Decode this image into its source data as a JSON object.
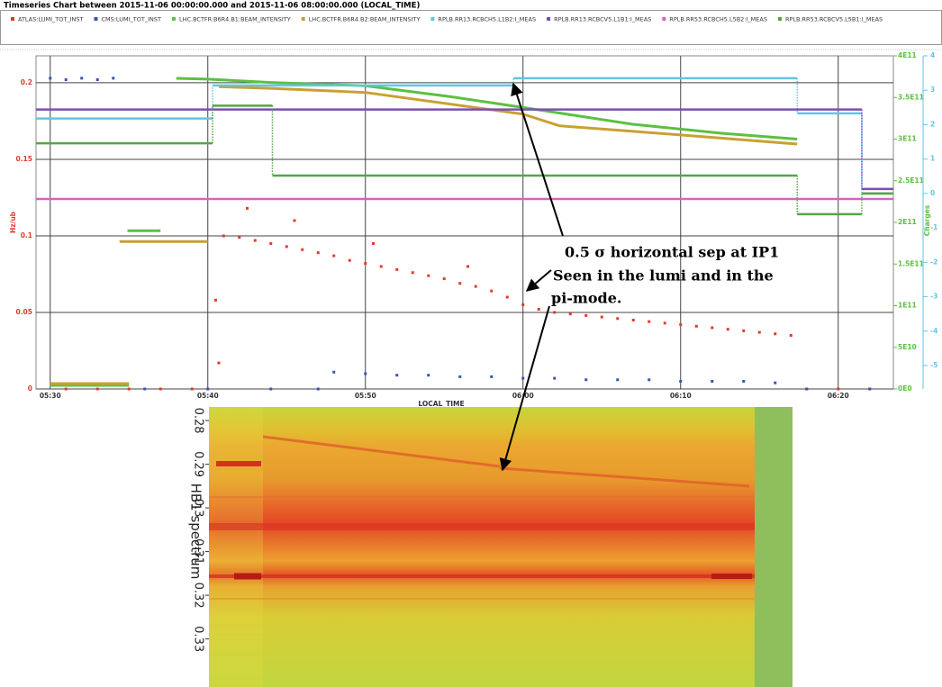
{
  "chart_data": [
    {
      "type": "line",
      "title": "Timeseries Chart between 2015-11-06 00:00:00.000 and 2015-11-06 08:00:00.000 (LOCAL_TIME)",
      "xlabel": "LOCAL_TIME",
      "ylabel": "Hz/ub",
      "y2label": "Charges",
      "xlim": [
        329.1,
        383.5
      ],
      "xticks": [
        {
          "value": 330,
          "label": "05:30"
        },
        {
          "value": 340,
          "label": "05:40"
        },
        {
          "value": 350,
          "label": "05:50"
        },
        {
          "value": 360,
          "label": "06:00"
        },
        {
          "value": 370,
          "label": "06:10"
        },
        {
          "value": 380,
          "label": "06:20"
        }
      ],
      "ylim": [
        0,
        0.2176
      ],
      "yticks": [
        0,
        0.05,
        0.1,
        0.15,
        0.2
      ],
      "y2lim": [
        0,
        400000000000
      ],
      "y2ticks": [
        {
          "value": 0,
          "label": "0E0"
        },
        {
          "value": 50000000000,
          "label": "5E10"
        },
        {
          "value": 100000000000,
          "label": "1E11"
        },
        {
          "value": 150000000000,
          "label": "1.5E11"
        },
        {
          "value": 200000000000,
          "label": "2E11"
        },
        {
          "value": 250000000000,
          "label": "2.5E11"
        },
        {
          "value": 300000000000,
          "label": "3E11"
        },
        {
          "value": 350000000000,
          "label": "3.5E11"
        },
        {
          "value": 400000000000,
          "label": "4E11"
        }
      ],
      "y3lim": [
        -5.68,
        4
      ],
      "y3ticks": [
        -5,
        -4,
        -3,
        -2,
        -1,
        0,
        1,
        2,
        3,
        4
      ],
      "grid": true,
      "series": [
        {
          "name": "ATLAS:LUMI_TOT_INST",
          "color": "#e23a2e",
          "axis": "y",
          "style": "scatter",
          "x": [
            331,
            333,
            335,
            337,
            339,
            340.5,
            340.7,
            341,
            342,
            342.5,
            343,
            344,
            345,
            345.5,
            346,
            347,
            348,
            349,
            350,
            350.5,
            351,
            352,
            353,
            354,
            355,
            356,
            356.5,
            357,
            358,
            359,
            360,
            361,
            362,
            363,
            364,
            365,
            366,
            367,
            368,
            369,
            370,
            371,
            372,
            373,
            374,
            375,
            376,
            377,
            378,
            380,
            382
          ],
          "values": [
            0,
            0,
            0,
            0,
            0,
            0.058,
            0.017,
            0.1,
            0.099,
            0.118,
            0.097,
            0.095,
            0.093,
            0.11,
            0.091,
            0.089,
            0.087,
            0.084,
            0.082,
            0.095,
            0.08,
            0.078,
            0.076,
            0.074,
            0.072,
            0.069,
            0.08,
            0.067,
            0.064,
            0.06,
            0.055,
            0.052,
            0.05,
            0.049,
            0.048,
            0.047,
            0.046,
            0.045,
            0.044,
            0.043,
            0.042,
            0.041,
            0.04,
            0.039,
            0.038,
            0.037,
            0.036,
            0.035,
            0,
            0,
            0
          ]
        },
        {
          "name": "CMS:LUMI_TOT_INST",
          "color": "#3a55b0",
          "axis": "y",
          "style": "scatter",
          "x": [
            330,
            331,
            332,
            333,
            334,
            336,
            340,
            344,
            347,
            348,
            350,
            352,
            354,
            356,
            358,
            360,
            362,
            364,
            366,
            368,
            370,
            372,
            374,
            376,
            378,
            382
          ],
          "values": [
            0.203,
            0.202,
            0.203,
            0.202,
            0.203,
            0,
            0,
            0,
            0,
            0.011,
            0.01,
            0.009,
            0.009,
            0.008,
            0.008,
            0.007,
            0.007,
            0.006,
            0.006,
            0.006,
            0.005,
            0.005,
            0.005,
            0.004,
            0,
            0
          ]
        },
        {
          "name": "LHC.BCTFR.B6R4.B1:BEAM_INTENSITY",
          "color": "#5cc040",
          "axis": "y2",
          "style": "line",
          "x": [
            330,
            335,
            335.5,
            334.9,
            337,
            337.5,
            338,
            340,
            344,
            350,
            355.4,
            360,
            366.9,
            372.6,
            377.4
          ],
          "values": [
            4300000000,
            4300000000,
            null,
            190000000000,
            190000000000,
            null,
            373000000000,
            372000000000,
            368000000000,
            364000000000,
            351000000000,
            338000000000,
            318000000000,
            307000000000,
            300000000000
          ]
        },
        {
          "name": "LHC.BCTFR.B6R4.B2:BEAM_INTENSITY",
          "color": "#c9a132",
          "axis": "y2",
          "style": "line",
          "x": [
            330,
            335,
            335.2,
            334.4,
            340,
            340.4,
            340.7,
            344,
            350,
            360,
            362.3,
            370,
            377.4
          ],
          "values": [
            6500000000,
            6500000000,
            null,
            177000000000,
            177000000000,
            null,
            363000000000,
            361000000000,
            356000000000,
            330000000000,
            316000000000,
            305000000000,
            294000000000
          ]
        },
        {
          "name": "RPLB.RR13.RCBCH5.L1B2:I_MEAS",
          "color": "#62c6e2",
          "axis": "y3",
          "style": "step",
          "x": [
            329.1,
            340.3,
            359.4,
            377.4,
            381.5
          ],
          "values": [
            2.18,
            3.14,
            3.35,
            2.33,
            0
          ]
        },
        {
          "name": "RPLB.RR13.RCBCV5.L1B1:I_MEAS",
          "color": "#7b4fb0",
          "axis": "y3",
          "style": "step",
          "x": [
            329.1,
            381.5
          ],
          "values": [
            2.44,
            0.13
          ]
        },
        {
          "name": "RPLB.RR53.RCBCH5.L5B2:I_MEAS",
          "color": "#d465c4",
          "axis": "y3",
          "style": "step",
          "x": [
            329.1
          ],
          "values": [
            -0.16
          ]
        },
        {
          "name": "RPLB.RR53.RCBCV5.L5B1:I_MEAS",
          "color": "#55a544",
          "axis": "y3",
          "style": "step",
          "x": [
            329.1,
            340.3,
            344.1,
            377.4,
            381.5
          ],
          "values": [
            1.46,
            2.55,
            0.52,
            -0.6,
            0
          ]
        }
      ],
      "annotation": [
        "0.5 σ horizontal sep at IP1",
        "Seen in the lumi and in the",
        "pi-mode."
      ]
    },
    {
      "type": "image",
      "ylabel": "HB1 spectrum",
      "ylim": [
        0.2769,
        0.341
      ],
      "yticks": [
        0.28,
        0.29,
        0.3,
        0.31,
        0.32,
        0.33
      ]
    }
  ]
}
